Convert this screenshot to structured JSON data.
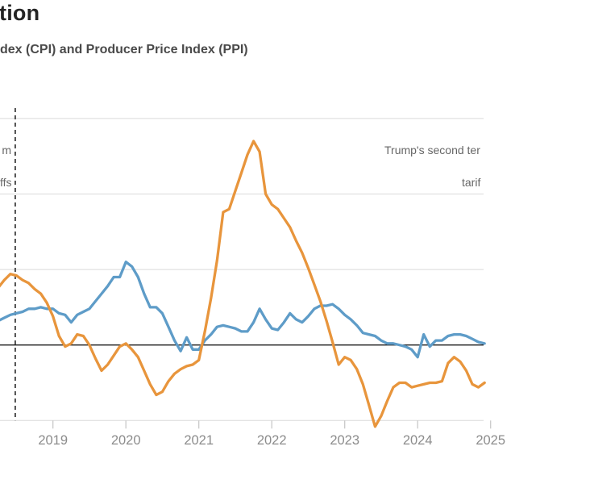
{
  "header": {
    "title_fragment": "tion",
    "subtitle_fragment": "dex (CPI) and Producer Price Index (PPI)"
  },
  "annotations": {
    "first_term_fragment_line1": "m",
    "first_term_fragment_line2": "ffs",
    "second_term_fragment_line1": "Trump's second ter",
    "second_term_fragment_line2": "tarif"
  },
  "chart_data": {
    "type": "line",
    "title_fragment": "tion",
    "subtitle_fragment": "dex (CPI) and Producer Price Index (PPI)",
    "x_start_month": "2018-04",
    "x_frequency": "monthly",
    "x_tick_years": [
      2019,
      2020,
      2021,
      2022,
      2023,
      2024,
      2025
    ],
    "ylim": [
      -5.2,
      15.2
    ],
    "gridline_values": [
      15,
      10,
      5,
      -5
    ],
    "zero_line_value": 0,
    "grid_on": true,
    "legend": "none-visible",
    "dashed_vline_month": "2018-07",
    "colors": {
      "cpi_line": "#5E9CC8",
      "ppi_line": "#E8953C",
      "gridline": "#DADADA",
      "zero_line": "#1A1A1A",
      "dashed_line": "#4F4F4F",
      "tick": "#C9C9C9",
      "axis_label": "#8C8C8C",
      "annotation_text": "#666666"
    },
    "series": [
      {
        "name": "CPI",
        "color": "#5E9CC8",
        "values": [
          1.6,
          1.8,
          2.0,
          2.1,
          2.2,
          2.4,
          2.4,
          2.5,
          2.4,
          2.4,
          2.1,
          2.0,
          1.5,
          2.0,
          2.2,
          2.4,
          2.9,
          3.4,
          3.9,
          4.5,
          4.5,
          5.5,
          5.2,
          4.5,
          3.4,
          2.5,
          2.5,
          2.1,
          1.2,
          0.3,
          -0.4,
          0.5,
          -0.3,
          -0.3,
          0.3,
          0.7,
          1.2,
          1.3,
          1.2,
          1.1,
          0.9,
          0.9,
          1.5,
          2.4,
          1.7,
          1.1,
          1.0,
          1.5,
          2.1,
          1.7,
          1.5,
          1.9,
          2.4,
          2.6,
          2.6,
          2.7,
          2.4,
          2.0,
          1.7,
          1.3,
          0.8,
          0.7,
          0.6,
          0.3,
          0.1,
          0.1,
          0.0,
          -0.1,
          -0.3,
          -0.8,
          0.7,
          -0.1,
          0.3,
          0.3,
          0.6,
          0.7,
          0.7,
          0.6,
          0.4,
          0.2,
          0.1
        ]
      },
      {
        "name": "PPI",
        "color": "#E8953C",
        "values": [
          3.8,
          4.3,
          4.7,
          4.6,
          4.3,
          4.1,
          3.7,
          3.4,
          2.8,
          1.9,
          0.6,
          -0.1,
          0.1,
          0.7,
          0.6,
          0.0,
          -0.9,
          -1.7,
          -1.3,
          -0.7,
          -0.1,
          0.1,
          -0.3,
          -0.8,
          -1.7,
          -2.6,
          -3.3,
          -3.1,
          -2.4,
          -1.9,
          -1.6,
          -1.4,
          -1.3,
          -1.0,
          0.9,
          3.1,
          5.6,
          8.8,
          9.0,
          10.2,
          11.4,
          12.6,
          13.5,
          12.8,
          10.0,
          9.3,
          9.0,
          8.4,
          7.8,
          6.9,
          6.1,
          5.1,
          4.0,
          2.9,
          1.6,
          0.2,
          -1.3,
          -0.8,
          -1.0,
          -1.6,
          -2.6,
          -4.0,
          -5.4,
          -4.7,
          -3.7,
          -2.8,
          -2.5,
          -2.5,
          -2.8,
          -2.7,
          -2.6,
          -2.5,
          -2.5,
          -2.4,
          -1.2,
          -0.8,
          -1.1,
          -1.7,
          -2.6,
          -2.8,
          -2.5
        ]
      }
    ]
  }
}
